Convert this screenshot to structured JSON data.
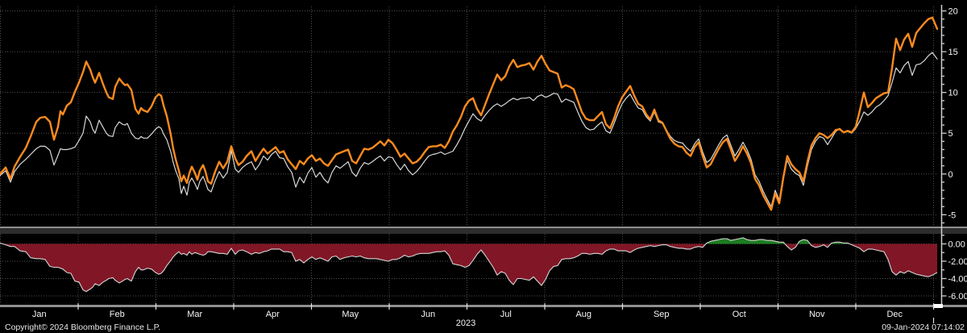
{
  "footer": {
    "copyright": "Copyright© 2024 Bloomberg Finance L.P.",
    "datetime": "09-Jan-2024 07:14:02"
  },
  "colors": {
    "background": "#000000",
    "grid": "#4f4f4f",
    "orange": "#fb8b1e",
    "white_line": "#d9d9d9",
    "area_negative": "#811726",
    "area_positive": "#1d7d21",
    "area_outline": "#d6d6d6",
    "axis": "#cfcfcf",
    "text": "#f5f5f5",
    "separator": "#8f8f8f",
    "separator_band": "#2d2d2d"
  },
  "chart_data": {
    "type": "line",
    "title": "",
    "x_axis": {
      "year_label": "2023",
      "months": [
        "Jan",
        "Feb",
        "Mar",
        "Apr",
        "May",
        "Jun",
        "Jul",
        "Aug",
        "Sep",
        "Oct",
        "Nov",
        "Dec"
      ]
    },
    "x": [
      0,
      7,
      13,
      18,
      25,
      32,
      38,
      45,
      50,
      56,
      62,
      67,
      72,
      75,
      78,
      83,
      88,
      93,
      98,
      103,
      107,
      112,
      115,
      118,
      123,
      128,
      132,
      135,
      140,
      143,
      148,
      152,
      155,
      158,
      163,
      168,
      172,
      175,
      178,
      183,
      188,
      193,
      197,
      200,
      203,
      207,
      212,
      215,
      218,
      222,
      225,
      228,
      232,
      235,
      238,
      242,
      245,
      248,
      252,
      255,
      258,
      262,
      267,
      272,
      277,
      282,
      287,
      292,
      296,
      301,
      306,
      312,
      317,
      322,
      327,
      332,
      337,
      342,
      347,
      352,
      357,
      362,
      367,
      372,
      377,
      382,
      387,
      392,
      397,
      402,
      407,
      412,
      417,
      422,
      427,
      432,
      437,
      442,
      447,
      452,
      457,
      462,
      467,
      472,
      477,
      482,
      487,
      492,
      497,
      502,
      507,
      512,
      517,
      522,
      527,
      532,
      537,
      542,
      547,
      552,
      557,
      562,
      567,
      572,
      577,
      582,
      587,
      592,
      597,
      602,
      607,
      612,
      617,
      622,
      627,
      632,
      637,
      642,
      647,
      652,
      657,
      662,
      667,
      672,
      677,
      682,
      687,
      692,
      697,
      702,
      707,
      712,
      717,
      722,
      727,
      732,
      737,
      742,
      747,
      752,
      757,
      762,
      767,
      772,
      777,
      782,
      787,
      792,
      797,
      802,
      807,
      812,
      817,
      822,
      827,
      832,
      837,
      842,
      847,
      852,
      857,
      862,
      867,
      872,
      877,
      882,
      887,
      892,
      897,
      902,
      907,
      912,
      917,
      922,
      927,
      932,
      937,
      942,
      947,
      952,
      957,
      962,
      967,
      972,
      977,
      982,
      987,
      992,
      997,
      1002,
      1007,
      1012,
      1017,
      1022,
      1027,
      1032,
      1037,
      1042,
      1047,
      1052,
      1057,
      1062,
      1067,
      1072,
      1077,
      1082,
      1087,
      1092,
      1097,
      1102,
      1107,
      1112,
      1117,
      1122,
      1127,
      1132,
      1137,
      1142,
      1147,
      1152,
      1157,
      1163
    ],
    "panels": [
      {
        "name": "main-panel",
        "ylim": [
          -6.45,
          20.55
        ],
        "yticks": [
          {
            "v": 20,
            "label": "20"
          },
          {
            "v": 15,
            "label": "15"
          },
          {
            "v": 10,
            "label": "10"
          },
          {
            "v": 5,
            "label": "5"
          },
          {
            "v": 0,
            "label": "0"
          },
          {
            "v": -5,
            "label": "-5"
          }
        ],
        "minor_ticks": [
          19,
          18,
          17,
          16,
          14,
          13,
          12,
          11,
          9,
          8,
          7,
          6,
          4,
          3,
          2,
          1,
          -1,
          -2,
          -3,
          -4,
          -6
        ],
        "series": [
          {
            "name": "orange-series-line",
            "color": "#fb8b1e",
            "width": 2.4,
            "values": [
              0,
              0.8,
              -0.6,
              0.9,
              2.1,
              3.2,
              4.6,
              6.4,
              6.9,
              7.0,
              6.4,
              4.2,
              5.8,
              7.7,
              7.3,
              8.4,
              8.8,
              10.1,
              11.2,
              12.5,
              13.8,
              12.8,
              11.9,
              11.2,
              12.4,
              11.0,
              10.0,
              9.4,
              9.2,
              10.7,
              11.7,
              11.2,
              10.9,
              11.0,
              10.3,
              8.0,
              7.4,
              8.1,
              7.8,
              7.6,
              8.3,
              9.4,
              9.8,
              9.6,
              8.4,
              7.1,
              4.8,
              3.1,
              1.8,
              0.4,
              -0.9,
              -0.2,
              -1.1,
              0.1,
              0.9,
              0.1,
              -0.7,
              0.4,
              1.1,
              0.3,
              -0.9,
              -1.2,
              0.3,
              1.5,
              0.7,
              1.5,
              3.4,
              1.9,
              1.1,
              1.5,
              2.2,
              2.8,
              1.6,
              2.4,
              3.1,
              2.5,
              2.9,
              3.3,
              2.6,
              2.8,
              1.8,
              1.2,
              0.6,
              1.6,
              1.2,
              1.9,
              2.3,
              1.6,
              1.9,
              1.3,
              1.0,
              1.7,
              2.4,
              2.6,
              2.8,
              3.0,
              1.6,
              1.3,
              2.2,
              3.1,
              3.0,
              3.2,
              3.6,
              4.0,
              3.5,
              4.2,
              3.8,
              3.0,
              2.1,
              2.5,
              1.9,
              1.3,
              1.5,
              2.0,
              2.7,
              3.3,
              3.4,
              3.4,
              3.6,
              3.2,
              4.0,
              5.2,
              6.0,
              7.0,
              8.3,
              9.0,
              9.3,
              8.0,
              7.2,
              8.5,
              9.8,
              11.0,
              12.2,
              11.5,
              12.0,
              13.2,
              14.0,
              13.1,
              13.3,
              13.4,
              13.6,
              12.8,
              13.8,
              14.5,
              13.5,
              12.7,
              12.5,
              12.3,
              10.6,
              10.9,
              10.7,
              10.4,
              9.0,
              7.6,
              6.8,
              6.6,
              6.6,
              7.1,
              7.6,
              6.1,
              5.6,
              6.8,
              8.3,
              9.4,
              10.1,
              10.8,
              9.6,
              8.6,
              8.3,
              7.3,
              6.7,
              7.9,
              6.6,
              6.3,
              5.3,
              4.3,
              3.7,
              3.4,
              3.3,
              2.6,
              2.2,
              3.3,
              3.9,
              2.2,
              0.8,
              1.2,
              2.2,
              3.1,
              3.9,
              4.3,
              3.0,
              1.6,
              2.4,
              3.4,
              2.5,
              1.3,
              -0.6,
              -1.4,
              -2.6,
              -3.5,
              -4.4,
              -2.4,
              -3.6,
              -0.5,
              2.2,
              1.2,
              0.6,
              0.2,
              -0.9,
              1.5,
              3.5,
              4.4,
              5.0,
              4.8,
              4.4,
              4.8,
              5.4,
              5.5,
              5.1,
              5.3,
              5.1,
              5.8,
              7.8,
              10.0,
              8.2,
              8.7,
              9.3,
              9.6,
              9.9,
              10.0,
              13.0,
              16.6,
              15.2,
              16.5,
              17.2,
              15.6,
              17.3,
              17.9,
              18.5,
              19.0,
              19.2,
              17.8
            ]
          },
          {
            "name": "white-series-line",
            "color": "#d9d9d9",
            "width": 1.2,
            "values": [
              -0.2,
              0.4,
              -1.0,
              0.3,
              1.2,
              1.8,
              2.4,
              3.1,
              3.4,
              3.4,
              2.9,
              1.1,
              2.3,
              3.1,
              3.0,
              3.0,
              3.1,
              3.3,
              4.1,
              5.0,
              7.1,
              6.4,
              5.5,
              5.0,
              6.6,
              5.7,
              5.0,
              4.7,
              4.6,
              5.7,
              6.4,
              6.1,
              6.0,
              6.2,
              5.0,
              4.4,
              4.3,
              4.6,
              4.4,
              4.4,
              4.9,
              5.5,
              5.8,
              5.6,
              4.9,
              4.2,
              2.7,
              1.4,
              0.4,
              -0.6,
              -2.4,
              -1.5,
              -2.6,
              -1.0,
              -0.5,
              -1.2,
              -1.9,
              -0.9,
              -0.3,
              -1.0,
              -1.9,
              -2.2,
              -0.8,
              0.3,
              -0.5,
              0.2,
              2.9,
              0.6,
              0.2,
              0.8,
              1.2,
              1.5,
              0.5,
              1.2,
              2.2,
              1.7,
              2.4,
              2.8,
              2.0,
              1.9,
              0.9,
              0.2,
              -1.6,
              -0.4,
              -1.1,
              0.1,
              0.8,
              -0.4,
              0.2,
              -0.6,
              -1.1,
              0.2,
              1.0,
              0.7,
              1.1,
              1.5,
              0.2,
              -0.3,
              0.7,
              1.4,
              1.2,
              1.5,
              1.9,
              2.2,
              1.6,
              2.1,
              2.0,
              1.2,
              0.5,
              1.2,
              0.4,
              -0.1,
              0.3,
              0.9,
              1.6,
              2.2,
              2.4,
              2.5,
              2.7,
              2.4,
              2.6,
              2.8,
              3.6,
              4.5,
              5.6,
              6.5,
              7.4,
              6.8,
              6.5,
              7.2,
              7.8,
              8.3,
              8.6,
              8.3,
              8.6,
              9.0,
              9.3,
              9.1,
              9.3,
              9.3,
              9.4,
              9.0,
              9.5,
              9.7,
              9.4,
              9.6,
              9.9,
              9.8,
              8.8,
              9.2,
              9.0,
              8.8,
              7.6,
              6.5,
              5.7,
              5.4,
              5.5,
              6.0,
              6.4,
              5.3,
              5.0,
              6.2,
              7.5,
              8.6,
              9.3,
              9.8,
              8.9,
              8.1,
              7.9,
              7.0,
              6.5,
              7.6,
              6.4,
              6.2,
              5.4,
              4.6,
              4.1,
              3.9,
              3.8,
              3.2,
              2.8,
              3.7,
              4.3,
              2.7,
              1.4,
              1.8,
              2.7,
              3.6,
              4.4,
              4.8,
              3.5,
              2.2,
              3.0,
              3.9,
              3.0,
              1.8,
              -0.1,
              -0.9,
              -2.1,
              -3.1,
              -4.0,
              -2.0,
              -3.2,
              -0.2,
              1.7,
              0.6,
              0.1,
              -0.2,
              -1.4,
              1.0,
              3.0,
              4.0,
              4.6,
              4.4,
              3.6,
              4.4,
              5.2,
              5.6,
              5.1,
              5.2,
              5.0,
              5.6,
              6.5,
              7.6,
              7.2,
              7.6,
              8.2,
              8.5,
              9.0,
              9.6,
              11.2,
              13.0,
              12.4,
              13.3,
              13.8,
              12.1,
              13.4,
              13.5,
              13.9,
              14.5,
              14.9,
              14.1
            ]
          }
        ]
      },
      {
        "name": "spread-panel",
        "ylim": [
          -6.93,
          1.16
        ],
        "yticks": [
          {
            "v": 0,
            "label": "0.00"
          },
          {
            "v": -2,
            "label": "-2.00"
          },
          {
            "v": -4,
            "label": "-4.00"
          },
          {
            "v": -6,
            "label": "-6.00"
          }
        ],
        "minor_ticks": [
          1,
          -1,
          -3,
          -5
        ],
        "series": [
          {
            "name": "spread-area",
            "type": "area",
            "values": [
              0.1,
              -0.1,
              -0.3,
              -0.3,
              -0.8,
              -0.9,
              -1.6,
              -1.7,
              -1.7,
              -1.8,
              -2.6,
              -2.7,
              -2.7,
              -2.8,
              -2.9,
              -3.3,
              -3.4,
              -4.3,
              -4.4,
              -5.3,
              -5.5,
              -5.2,
              -5.0,
              -4.6,
              -4.8,
              -4.4,
              -4.2,
              -4.0,
              -3.9,
              -4.2,
              -4.5,
              -4.3,
              -4.1,
              -4.0,
              -4.3,
              -3.2,
              -2.7,
              -3.0,
              -3.0,
              -2.8,
              -2.9,
              -3.3,
              -3.5,
              -3.4,
              -3.1,
              -2.5,
              -1.9,
              -1.5,
              -1.2,
              -0.9,
              -1.2,
              -1.1,
              -1.3,
              -0.9,
              -1.2,
              -1.0,
              -1.1,
              -1.2,
              -1.3,
              -1.2,
              -0.9,
              -0.9,
              -1.0,
              -1.1,
              -1.1,
              -1.2,
              -0.5,
              -1.2,
              -0.8,
              -0.7,
              -0.9,
              -1.2,
              -1.0,
              -1.1,
              -0.9,
              -0.8,
              -0.6,
              -0.6,
              -0.6,
              -0.9,
              -0.9,
              -1.0,
              -2.0,
              -1.8,
              -2.2,
              -1.8,
              -1.5,
              -1.8,
              -1.6,
              -1.8,
              -2.0,
              -1.5,
              -1.4,
              -1.8,
              -1.6,
              -1.5,
              -1.4,
              -1.5,
              -1.4,
              -1.6,
              -1.7,
              -1.7,
              -1.7,
              -1.8,
              -1.9,
              -2.0,
              -1.8,
              -1.8,
              -1.6,
              -1.3,
              -1.5,
              -1.4,
              -1.2,
              -1.1,
              -1.1,
              -1.1,
              -1.0,
              -0.9,
              -0.9,
              -0.8,
              -1.3,
              -2.3,
              -2.4,
              -2.5,
              -2.7,
              -2.5,
              -1.9,
              -1.2,
              -0.7,
              -1.3,
              -2.0,
              -2.7,
              -3.6,
              -3.2,
              -3.4,
              -4.2,
              -4.7,
              -4.0,
              -4.0,
              -4.1,
              -4.2,
              -3.8,
              -4.3,
              -4.8,
              -4.1,
              -3.1,
              -2.6,
              -2.5,
              -1.8,
              -1.7,
              -1.7,
              -1.6,
              -1.4,
              -1.1,
              -1.1,
              -1.2,
              -1.1,
              -1.1,
              -1.2,
              -0.8,
              -0.6,
              -0.6,
              -0.8,
              -0.8,
              -0.8,
              -1.0,
              -0.7,
              -0.5,
              -0.4,
              -0.3,
              -0.2,
              -0.3,
              -0.2,
              -0.1,
              -0.1,
              -0.3,
              -0.4,
              -0.5,
              -0.5,
              -0.6,
              -0.6,
              -0.4,
              -0.3,
              -0.4,
              0.1,
              0.3,
              0.4,
              0.5,
              0.6,
              0.6,
              0.4,
              0.5,
              0.6,
              0.7,
              0.5,
              0.4,
              0.4,
              0.5,
              0.5,
              0.4,
              0.4,
              0.3,
              0.2,
              0.2,
              -0.3,
              -0.7,
              -0.4,
              0.3,
              0.5,
              0.4,
              -0.2,
              -0.4,
              -0.3,
              -0.1,
              -0.4,
              0.1,
              0.2,
              0.2,
              0.1,
              0.1,
              -0.1,
              -0.3,
              -0.5,
              -0.9,
              -0.6,
              -0.6,
              -0.7,
              -0.8,
              -0.9,
              -1.8,
              -3.2,
              -3.6,
              -3.2,
              -3.4,
              -3.1,
              -3.3,
              -3.5,
              -3.6,
              -3.7,
              -3.8,
              -3.6,
              -3.3
            ]
          }
        ]
      }
    ]
  }
}
